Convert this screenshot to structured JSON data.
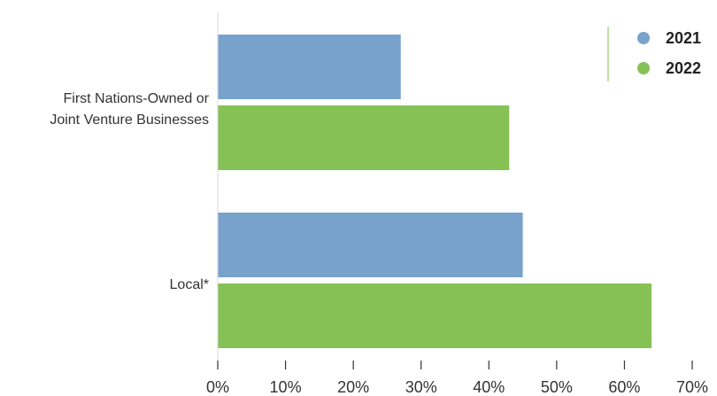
{
  "chart_data": {
    "type": "bar",
    "orientation": "horizontal",
    "categories": [
      [
        "First Nations-Owned or",
        "Joint Venture Businesses"
      ],
      [
        "Local*"
      ]
    ],
    "series": [
      {
        "name": "2021",
        "color": "#78a2cc",
        "values": [
          27,
          45
        ]
      },
      {
        "name": "2022",
        "color": "#86c156",
        "values": [
          43,
          64
        ]
      }
    ],
    "xlim": [
      0,
      70
    ],
    "xticks": [
      0,
      10,
      20,
      30,
      40,
      50,
      60,
      70
    ],
    "tick_format": "{v}%",
    "legend_position": "top-right",
    "grid": false
  }
}
